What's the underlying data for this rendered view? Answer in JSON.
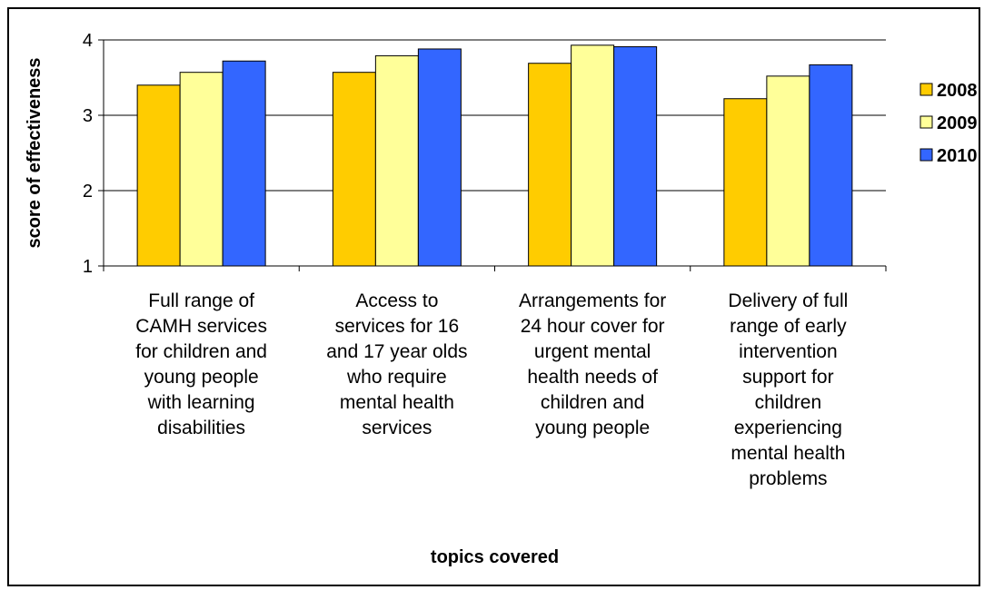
{
  "chart_data": {
    "type": "bar",
    "title": "",
    "xlabel": "topics covered",
    "ylabel": "score of effectiveness",
    "ylim": [
      1,
      4
    ],
    "yticks": [
      1,
      2,
      3,
      4
    ],
    "grid": true,
    "legend_position": "right",
    "categories": [
      [
        "Full range of",
        "CAMH services",
        "for children and",
        "young people",
        "with learning",
        "disabilities"
      ],
      [
        "Access to",
        "services  for 16",
        "and 17 year olds",
        "who require",
        "mental health",
        "services"
      ],
      [
        "Arrangements for",
        "24 hour cover for",
        "urgent mental",
        "health needs of",
        "children and",
        "young people"
      ],
      [
        "Delivery of full",
        "range of early",
        "intervention",
        "support for",
        "children",
        "experiencing",
        "mental health",
        "problems"
      ]
    ],
    "series": [
      {
        "name": "2008",
        "color": "#FFCC00",
        "values": [
          3.4,
          3.57,
          3.69,
          3.22
        ]
      },
      {
        "name": "2009",
        "color": "#FFFF99",
        "values": [
          3.57,
          3.79,
          3.93,
          3.52
        ]
      },
      {
        "name": "2010",
        "color": "#3366FF",
        "values": [
          3.72,
          3.88,
          3.91,
          3.67
        ]
      }
    ]
  }
}
